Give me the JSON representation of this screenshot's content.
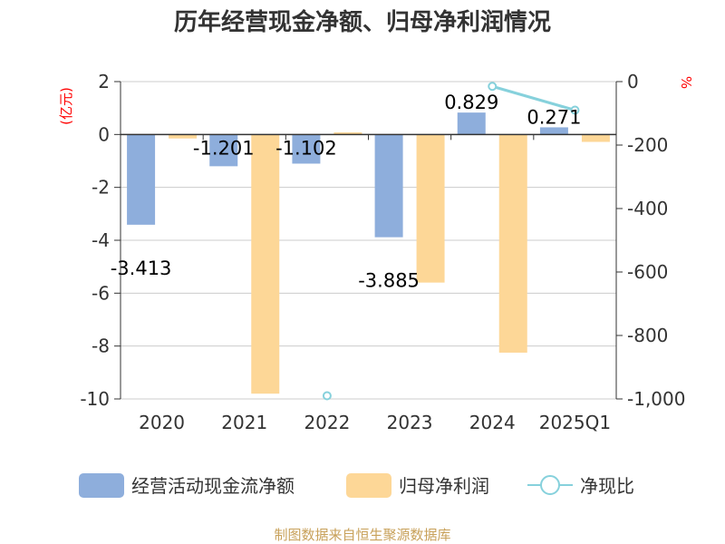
{
  "chart_data": {
    "type": "bar",
    "title": "历年经营现金净额、归母净利润情况",
    "categories": [
      "2020",
      "2021",
      "2022",
      "2023",
      "2024",
      "2025Q1"
    ],
    "ylabel_left": "(亿元)",
    "ylabel_right": "%",
    "ylim_left": [
      -10,
      2
    ],
    "ylim_right": [
      -1000,
      0
    ],
    "yticks_left": [
      "2",
      "0",
      "-2",
      "-4",
      "-6",
      "-8",
      "-10"
    ],
    "yticks_right": [
      "0",
      "-200",
      "-400",
      "-600",
      "-800",
      "-1,000"
    ],
    "grid": true,
    "legend_position": "bottom",
    "series": [
      {
        "name": "经营活动现金流净额",
        "type": "bar",
        "axis": "left",
        "color": "#8eaedc",
        "values": [
          -3.413,
          -1.201,
          -1.102,
          -3.885,
          0.829,
          0.271
        ],
        "labels": [
          "-3.413",
          "-1.201",
          "-1.102",
          "-3.885",
          "0.829",
          "0.271"
        ]
      },
      {
        "name": "归母净利润",
        "type": "bar",
        "axis": "left",
        "color": "#fdd797",
        "values": [
          -0.15,
          -9.8,
          0.08,
          -5.6,
          -8.25,
          -0.28
        ]
      },
      {
        "name": "净现比",
        "type": "line",
        "axis": "right",
        "color": "#86d1dc",
        "values": [
          null,
          null,
          -990,
          null,
          -15,
          -90
        ]
      }
    ],
    "source": "制图数据来自恒生聚源数据库"
  }
}
